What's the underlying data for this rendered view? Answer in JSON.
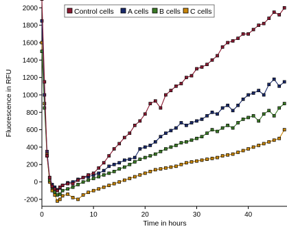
{
  "chart_data": {
    "type": "line",
    "xlabel": "Time in hours",
    "ylabel": "Fluorescence in RFU",
    "xlim": [
      0,
      47.5
    ],
    "ylim": [
      -280,
      2090
    ],
    "x_ticks": [
      0,
      10,
      20,
      30,
      40
    ],
    "y_ticks": [
      -200,
      0,
      200,
      400,
      600,
      800,
      1000,
      1200,
      1400,
      1600,
      1800,
      2000
    ],
    "marker": "square",
    "legend_position": "top",
    "series": [
      {
        "name": "Control cells",
        "color": "#8b1a32",
        "x": [
          0,
          0.5,
          1,
          1.5,
          2,
          2.5,
          3,
          3.5,
          4,
          5,
          6,
          7,
          8,
          9,
          10,
          11,
          12,
          13,
          14,
          15,
          16,
          17,
          18,
          19,
          20,
          21,
          22,
          23,
          24,
          25,
          26,
          27,
          28,
          29,
          30,
          31,
          32,
          33,
          34,
          35,
          36,
          37,
          38,
          39,
          40,
          41,
          42,
          43,
          44,
          45,
          46,
          47
        ],
        "y": [
          2100,
          1150,
          300,
          50,
          -50,
          -80,
          -100,
          -60,
          -40,
          -20,
          -20,
          20,
          50,
          80,
          100,
          160,
          220,
          300,
          380,
          440,
          510,
          560,
          650,
          700,
          780,
          900,
          930,
          850,
          1000,
          1050,
          1100,
          1130,
          1200,
          1220,
          1300,
          1320,
          1350,
          1400,
          1450,
          1550,
          1600,
          1620,
          1650,
          1700,
          1700,
          1750,
          1800,
          1820,
          1880,
          1950,
          1920,
          2000
        ]
      },
      {
        "name": "A cells",
        "color": "#1a2a6b",
        "x": [
          0,
          0.5,
          1,
          1.5,
          2,
          2.5,
          3,
          3.5,
          4,
          5,
          6,
          7,
          8,
          9,
          10,
          11,
          12,
          13,
          14,
          15,
          16,
          17,
          18,
          19,
          20,
          21,
          22,
          23,
          24,
          25,
          26,
          27,
          28,
          29,
          30,
          31,
          32,
          33,
          34,
          35,
          36,
          37,
          38,
          39,
          40,
          41,
          42,
          43,
          44,
          45,
          46,
          47
        ],
        "y": [
          1850,
          1000,
          350,
          50,
          -30,
          -60,
          -90,
          -70,
          -40,
          -10,
          0,
          30,
          50,
          60,
          80,
          100,
          130,
          180,
          200,
          220,
          250,
          260,
          280,
          380,
          400,
          420,
          460,
          520,
          560,
          590,
          620,
          680,
          650,
          680,
          700,
          720,
          760,
          800,
          780,
          850,
          880,
          820,
          880,
          950,
          1000,
          1020,
          1050,
          1000,
          1120,
          1180,
          1100,
          1150
        ]
      },
      {
        "name": "B cells",
        "color": "#3a7a26",
        "x": [
          0,
          0.5,
          1,
          1.5,
          2,
          2.5,
          3,
          3.5,
          4,
          5,
          6,
          7,
          8,
          9,
          10,
          11,
          12,
          13,
          14,
          15,
          16,
          17,
          18,
          19,
          20,
          21,
          22,
          23,
          24,
          25,
          26,
          27,
          28,
          29,
          30,
          31,
          32,
          33,
          34,
          35,
          36,
          37,
          38,
          39,
          40,
          41,
          42,
          43,
          44,
          45,
          46,
          47
        ],
        "y": [
          1500,
          850,
          300,
          20,
          -60,
          -120,
          -150,
          -140,
          -100,
          -80,
          -60,
          -30,
          0,
          20,
          40,
          60,
          80,
          100,
          120,
          150,
          170,
          200,
          230,
          260,
          280,
          300,
          320,
          350,
          380,
          400,
          420,
          450,
          460,
          480,
          500,
          520,
          560,
          600,
          580,
          620,
          650,
          620,
          680,
          720,
          740,
          760,
          700,
          780,
          820,
          760,
          850,
          900
        ]
      },
      {
        "name": "C cells",
        "color": "#c8860a",
        "x": [
          0,
          0.5,
          1,
          1.5,
          2,
          2.5,
          3,
          3.5,
          4,
          5,
          6,
          7,
          8,
          9,
          10,
          11,
          12,
          13,
          14,
          15,
          16,
          17,
          18,
          19,
          20,
          21,
          22,
          23,
          24,
          25,
          26,
          27,
          28,
          29,
          30,
          31,
          32,
          33,
          34,
          35,
          36,
          37,
          38,
          39,
          40,
          41,
          42,
          43,
          44,
          45,
          46,
          47
        ],
        "y": [
          1600,
          900,
          320,
          0,
          -100,
          -150,
          -220,
          -200,
          -160,
          -140,
          -180,
          -200,
          -150,
          -120,
          -100,
          -80,
          -60,
          -40,
          -20,
          0,
          20,
          40,
          60,
          80,
          100,
          120,
          140,
          150,
          160,
          170,
          180,
          200,
          220,
          230,
          240,
          250,
          260,
          270,
          280,
          300,
          310,
          320,
          340,
          360,
          380,
          400,
          420,
          440,
          460,
          480,
          500,
          600
        ]
      }
    ]
  }
}
